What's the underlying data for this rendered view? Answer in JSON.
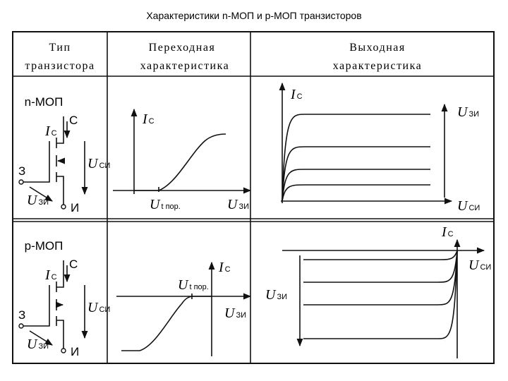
{
  "title": "Характеристики n-МОП и р-МОП транзисторов",
  "table": {
    "headers": [
      {
        "line1": "Тип",
        "line2": "транзистора"
      },
      {
        "line1": "Переходная",
        "line2": "характеристика"
      },
      {
        "line1": "Выходная",
        "line2": "характеристика"
      }
    ],
    "rows": [
      {
        "type": "n-МОП",
        "drain": "С",
        "gate": "З",
        "source": "И",
        "drain_current": {
          "symbol": "I",
          "sub": "С"
        },
        "drain_source_voltage": {
          "symbol": "U",
          "sub": "СИ"
        },
        "gate_source_voltage": {
          "symbol": "U",
          "sub": "ЗИ"
        },
        "transfer": {
          "y_axis": {
            "symbol": "I",
            "sub": "С"
          },
          "x_axis": {
            "symbol": "U",
            "sub": "ЗИ"
          },
          "threshold": {
            "symbol": "U",
            "sub": "t пор."
          }
        },
        "output": {
          "y_axis": {
            "symbol": "I",
            "sub": "С"
          },
          "x_axis": {
            "symbol": "U",
            "sub": "СИ"
          },
          "parameter": {
            "symbol": "U",
            "sub": "ЗИ"
          }
        }
      },
      {
        "type": "p-МОП",
        "drain": "С",
        "gate": "З",
        "source": "И",
        "drain_current": {
          "symbol": "I",
          "sub": "С"
        },
        "drain_source_voltage": {
          "symbol": "U",
          "sub": "СИ"
        },
        "gate_source_voltage": {
          "symbol": "U",
          "sub": "ЗИ"
        },
        "transfer": {
          "y_axis": {
            "symbol": "I",
            "sub": "С"
          },
          "x_axis": {
            "symbol": "U",
            "sub": "ЗИ"
          },
          "threshold": {
            "symbol": "U",
            "sub": "t пор."
          }
        },
        "output": {
          "y_axis": {
            "symbol": "I",
            "sub": "С"
          },
          "x_axis": {
            "symbol": "U",
            "sub": "СИ"
          },
          "parameter": {
            "symbol": "U",
            "sub": "ЗИ"
          }
        }
      }
    ]
  }
}
